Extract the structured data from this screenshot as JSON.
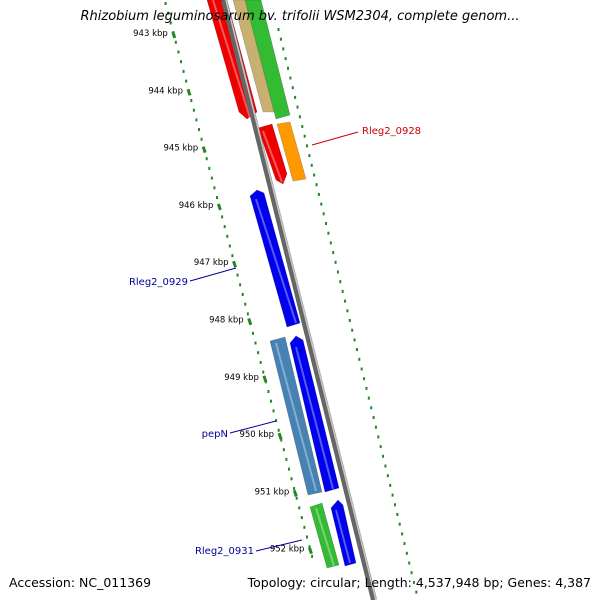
{
  "title": "Rhizobium leguminosarum bv. trifolii WSM2304, complete genom...",
  "footer": {
    "accession": "Accession: NC_011369",
    "summary": "Topology: circular; Length: 4,537,948 bp; Genes: 4,387"
  },
  "ticks": [
    {
      "label": "943 kbp",
      "kbp": 943
    },
    {
      "label": "944 kbp",
      "kbp": 944
    },
    {
      "label": "945 kbp",
      "kbp": 945
    },
    {
      "label": "946 kbp",
      "kbp": 946
    },
    {
      "label": "947 kbp",
      "kbp": 947
    },
    {
      "label": "948 kbp",
      "kbp": 948
    },
    {
      "label": "949 kbp",
      "kbp": 949
    },
    {
      "label": "950 kbp",
      "kbp": 950
    },
    {
      "label": "951 kbp",
      "kbp": 951
    },
    {
      "label": "952 kbp",
      "kbp": 952
    }
  ],
  "gene_labels": [
    {
      "text": "Rleg2_0928",
      "color": "#cc0000"
    },
    {
      "text": "Rleg2_0929",
      "color": "#000099"
    },
    {
      "text": "pepN",
      "color": "#000099"
    },
    {
      "text": "Rleg2_0931",
      "color": "#000099"
    }
  ],
  "colors": {
    "backbone": "#8c8c8c",
    "tick_marks": "#228822",
    "red_feature": "#ee0000",
    "orange_feature": "#ff9900",
    "blue_feature": "#0000ee",
    "steelblue_feature": "#4682b4",
    "green_feature": "#33bb33",
    "tan_feature": "#c8b070"
  }
}
